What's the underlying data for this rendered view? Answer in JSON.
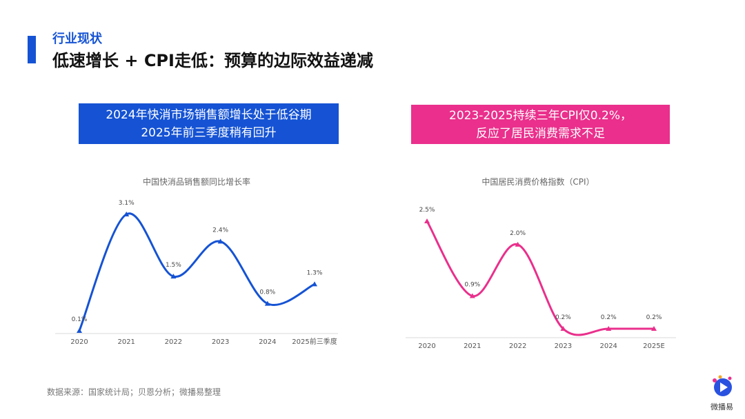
{
  "header": {
    "section": "行业现状",
    "title": "低速增长 + CPI走低：预算的边际效益递减"
  },
  "callouts": [
    {
      "lines": [
        "2024年快消市场销售额增长处于低谷期",
        "2025年前三季度稍有回升"
      ]
    },
    {
      "lines": [
        "2023-2025持续三年CPI仅0.2%，",
        "反应了居民消费需求不足"
      ]
    }
  ],
  "source": "数据来源：国家统计局；贝恩分析；微播易整理",
  "logo": "微播易",
  "chart_data": [
    {
      "type": "line",
      "title": "中国快消品销售额同比增长率",
      "categories": [
        "2020",
        "2021",
        "2022",
        "2023",
        "2024",
        "2025前三季度"
      ],
      "values": [
        0.1,
        3.1,
        1.5,
        2.4,
        0.8,
        1.3
      ],
      "value_labels": [
        "0.1%",
        "3.1%",
        "1.5%",
        "2.4%",
        "0.8%",
        "1.3%"
      ],
      "color": "#1553d4"
    },
    {
      "type": "line",
      "title": "中国居民消费价格指数（CPI）",
      "categories": [
        "2020",
        "2021",
        "2022",
        "2023",
        "2024",
        "2025E"
      ],
      "values": [
        2.5,
        0.9,
        2.0,
        0.2,
        0.2,
        0.2
      ],
      "value_labels": [
        "2.5%",
        "0.9%",
        "2.0%",
        "0.2%",
        "0.2%",
        "0.2%"
      ],
      "color": "#ea2f8c"
    }
  ]
}
